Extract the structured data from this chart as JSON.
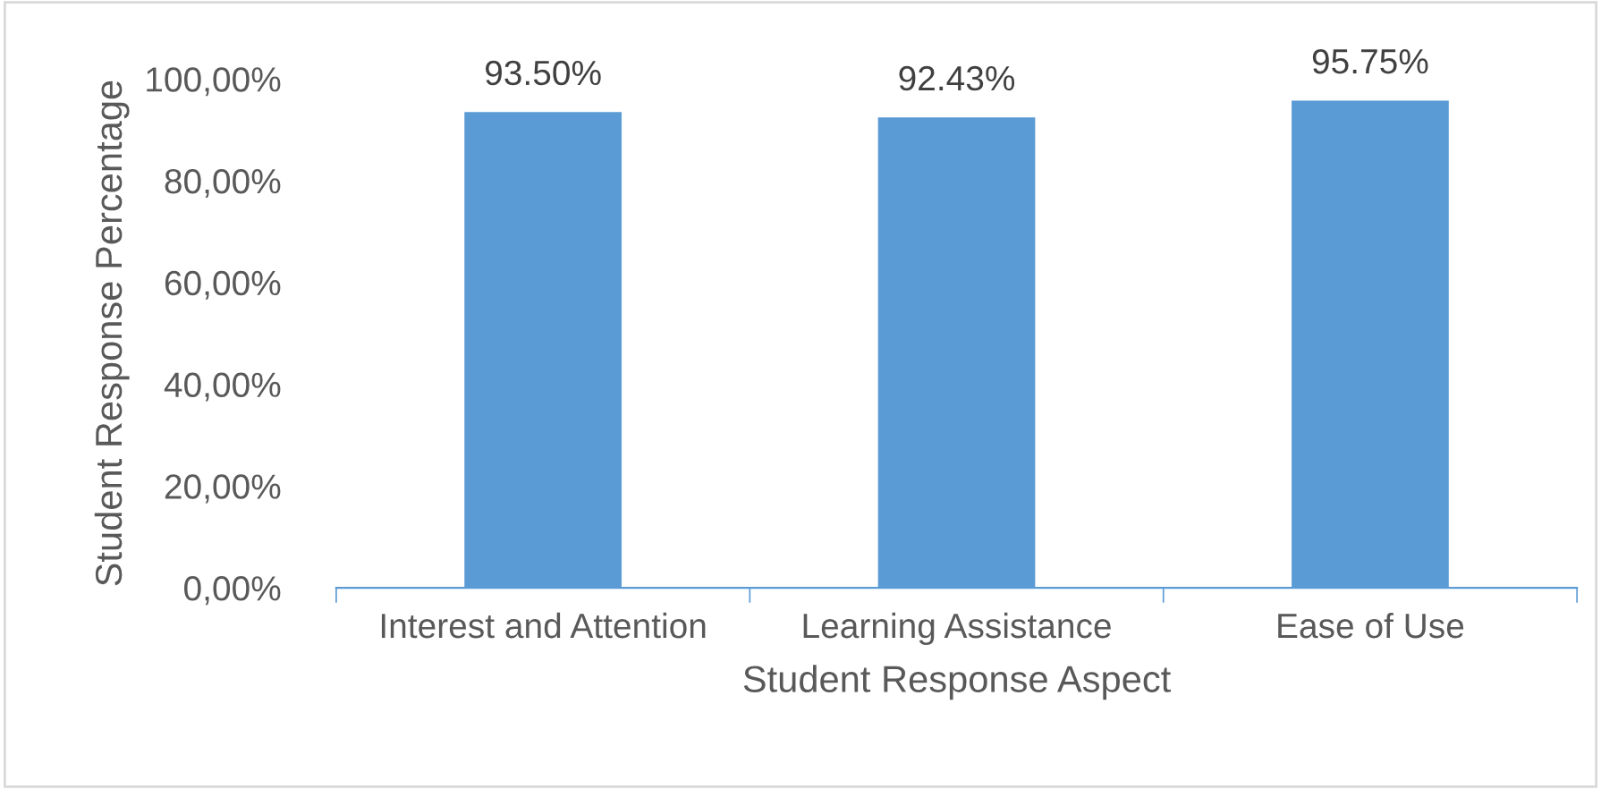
{
  "chart_data": {
    "type": "bar",
    "xlabel": "Student Response Aspect",
    "ylabel": "Student Response Percentage",
    "categories": [
      "Interest and Attention",
      "Learning Assistance",
      "Ease of Use"
    ],
    "values": [
      93.5,
      92.43,
      95.75
    ],
    "color": "#5b9bd5",
    "value_labels": [
      "93.50%",
      "92.43%",
      "95.75%"
    ],
    "ylim": [
      0,
      100
    ],
    "yticks": [
      {
        "value": 0,
        "label": "0,00%"
      },
      {
        "value": 20,
        "label": "20,00%"
      },
      {
        "value": 40,
        "label": "40,00%"
      },
      {
        "value": 60,
        "label": "60,00%"
      },
      {
        "value": 80,
        "label": "80,00%"
      },
      {
        "value": 100,
        "label": "100,00%"
      }
    ],
    "grid": false,
    "legend": false
  }
}
